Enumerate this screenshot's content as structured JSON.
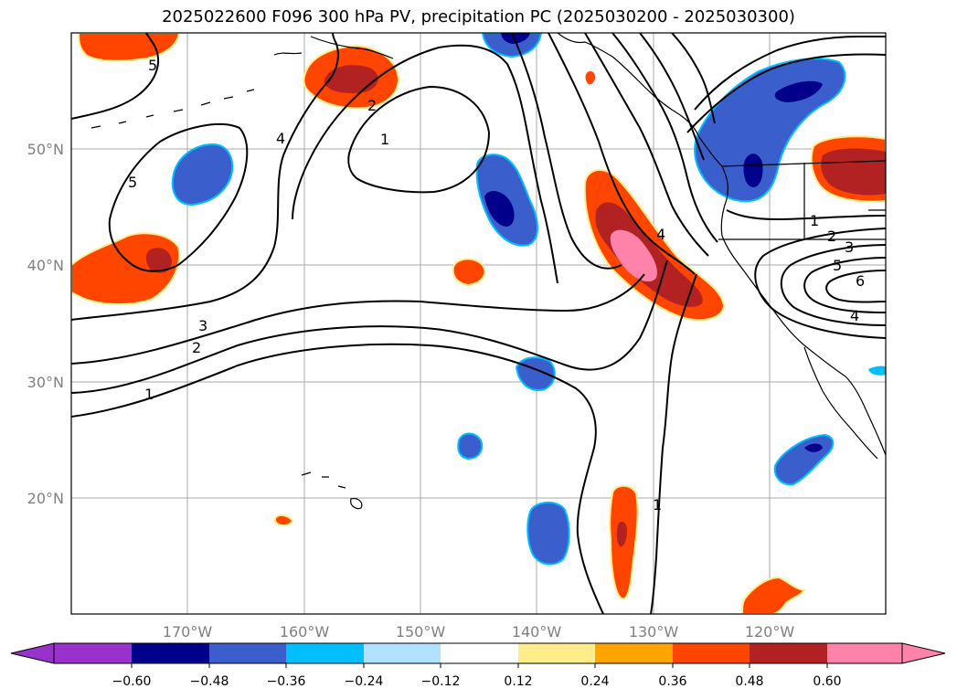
{
  "title": "2025022600 F096 300 hPa PV, precipitation PC (2025030200 - 2025030300)",
  "lat_ticks": [
    "50°N",
    "40°N",
    "30°N",
    "20°N"
  ],
  "lon_ticks": [
    "170°W",
    "160°W",
    "150°W",
    "140°W",
    "130°W",
    "120°W"
  ],
  "contour_labels": [
    "5",
    "5",
    "4",
    "2",
    "1",
    "3",
    "2",
    "1",
    "4",
    "1",
    "1",
    "2",
    "3",
    "5",
    "6",
    "4"
  ],
  "colorbar": {
    "ticks": [
      "−0.60",
      "−0.48",
      "−0.36",
      "−0.24",
      "−0.12",
      "0.12",
      "0.24",
      "0.36",
      "0.48",
      "0.60"
    ],
    "colors": [
      "#9932CC",
      "#00008B",
      "#3A5FCD",
      "#00BFFF",
      "#B0E2FF",
      "#FFFFFF",
      "#FFEC8B",
      "#FFA500",
      "#FF4500",
      "#B22222",
      "#FF82AB"
    ]
  },
  "colors": {
    "neg_dark": "#00008B",
    "neg_mid": "#3A5FCD",
    "neg_light": "#00BFFF",
    "pos_light": "#FFEC8B",
    "pos_mid": "#FF4500",
    "pos_dark": "#B22222",
    "pos_max": "#FF82AB"
  }
}
